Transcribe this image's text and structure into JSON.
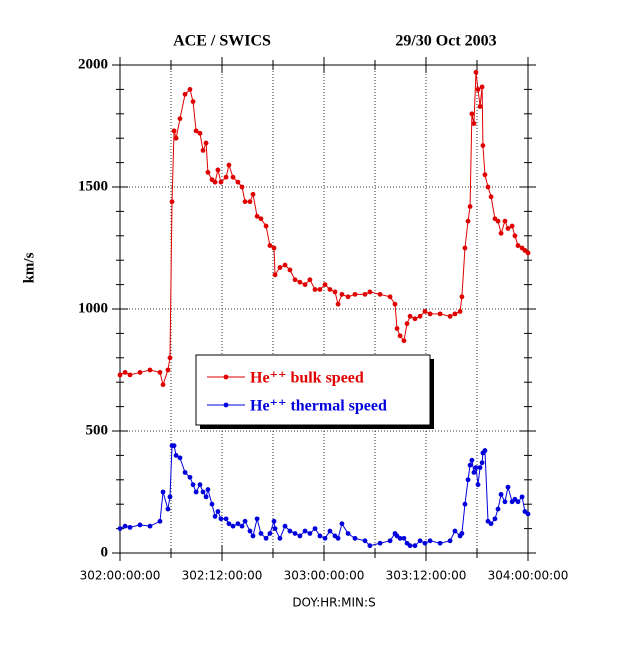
{
  "chart_data": {
    "type": "line",
    "title": "ACE / SWICS",
    "subtitle": "29/30 Oct 2003",
    "x_label": "DOY:HR:MIN:S",
    "y_label": "km/s",
    "xlim": [
      302,
      304
    ],
    "ylim": [
      0,
      2000
    ],
    "xticks": [
      {
        "value": 302,
        "label": "302:00:00:00"
      },
      {
        "value": 302.5,
        "label": "302:12:00:00"
      },
      {
        "value": 303,
        "label": "303:00:00:00"
      },
      {
        "value": 303.5,
        "label": "303:12:00:00"
      },
      {
        "value": 304,
        "label": "304:00:00:00"
      }
    ],
    "x_minor_ticks": [
      302.25,
      302.75,
      303.25,
      303.75
    ],
    "yticks": [
      0,
      500,
      1000,
      1500,
      2000
    ],
    "y_minor_step": 100,
    "grid": true,
    "x": [
      302,
      302.025,
      302.049,
      302.098,
      302.147,
      302.196,
      302.211,
      302.235,
      302.245,
      302.255,
      302.265,
      302.275,
      302.294,
      302.319,
      302.343,
      302.358,
      302.373,
      302.392,
      302.407,
      302.422,
      302.431,
      302.451,
      302.466,
      302.48,
      302.495,
      302.52,
      302.534,
      302.554,
      302.578,
      302.598,
      302.613,
      302.637,
      302.652,
      302.672,
      302.691,
      302.716,
      302.735,
      302.755,
      302.76,
      302.784,
      302.809,
      302.833,
      302.858,
      302.882,
      302.907,
      302.931,
      302.956,
      302.98,
      303.005,
      303.029,
      303.054,
      303.069,
      303.088,
      303.118,
      303.152,
      303.201,
      303.225,
      303.275,
      303.324,
      303.348,
      303.358,
      303.373,
      303.392,
      303.407,
      303.422,
      303.446,
      303.471,
      303.495,
      303.52,
      303.569,
      303.618,
      303.642,
      303.667,
      303.676,
      303.691,
      303.706,
      303.716,
      303.725,
      303.735,
      303.745,
      303.755,
      303.765,
      303.775,
      303.779,
      303.789,
      303.804,
      303.819,
      303.838,
      303.853,
      303.868,
      303.887,
      303.902,
      303.922,
      303.936,
      303.951,
      303.971,
      303.985,
      304
    ],
    "series": [
      {
        "name": "He⁺⁺  bulk speed",
        "color": "#e00000",
        "values": [
          730,
          740,
          730,
          740,
          750,
          740,
          690,
          750,
          800,
          1440,
          1730,
          1700,
          1780,
          1880,
          1900,
          1850,
          1730,
          1720,
          1650,
          1680,
          1560,
          1530,
          1520,
          1570,
          1520,
          1540,
          1590,
          1540,
          1520,
          1500,
          1440,
          1440,
          1470,
          1380,
          1370,
          1340,
          1260,
          1250,
          1140,
          1170,
          1180,
          1160,
          1120,
          1110,
          1100,
          1120,
          1080,
          1080,
          1100,
          1080,
          1070,
          1020,
          1060,
          1050,
          1060,
          1060,
          1070,
          1060,
          1050,
          1020,
          920,
          890,
          870,
          940,
          970,
          960,
          970,
          990,
          980,
          980,
          970,
          980,
          990,
          1050,
          1250,
          1360,
          1420,
          1800,
          1760,
          1970,
          1900,
          1830,
          1910,
          1670,
          1550,
          1500,
          1460,
          1370,
          1360,
          1310,
          1360,
          1330,
          1340,
          1300,
          1260,
          1250,
          1240,
          1230
        ]
      },
      {
        "name": "He⁺⁺  thermal speed",
        "color": "#0000dd",
        "values": [
          100,
          110,
          105,
          115,
          110,
          130,
          250,
          180,
          230,
          440,
          440,
          400,
          390,
          330,
          310,
          280,
          250,
          280,
          250,
          230,
          260,
          200,
          150,
          170,
          140,
          140,
          120,
          110,
          120,
          110,
          130,
          90,
          70,
          140,
          80,
          60,
          80,
          130,
          100,
          60,
          110,
          90,
          80,
          70,
          90,
          80,
          100,
          70,
          60,
          90,
          70,
          60,
          120,
          80,
          60,
          50,
          30,
          40,
          50,
          80,
          70,
          60,
          60,
          40,
          30,
          30,
          50,
          40,
          50,
          40,
          50,
          90,
          70,
          80,
          200,
          300,
          360,
          380,
          330,
          350,
          280,
          350,
          370,
          410,
          420,
          130,
          120,
          140,
          180,
          240,
          210,
          270,
          210,
          220,
          210,
          230,
          170,
          160
        ]
      }
    ]
  }
}
